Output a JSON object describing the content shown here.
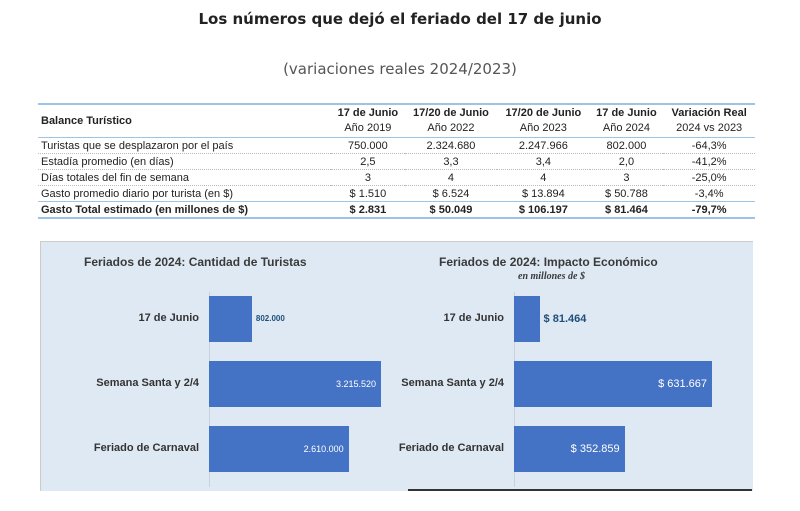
{
  "title": "Los números que dejó el feriado del 17 de junio",
  "subtitle": "(variaciones reales 2024/2023)",
  "table": {
    "header": {
      "label": "Balance Turístico",
      "cols": [
        [
          "17 de Junio",
          "Año 2019"
        ],
        [
          "17/20 de Junio",
          "Año 2022"
        ],
        [
          "17/20 de Junio",
          "Año 2023"
        ],
        [
          "17 de Junio",
          "Año 2024"
        ],
        [
          "Variación Real",
          "2024 vs 2023"
        ]
      ]
    },
    "rows": [
      [
        "Turistas que se desplazaron por el país",
        "750.000",
        "2.324.680",
        "2.247.966",
        "802.000",
        "-64,3%"
      ],
      [
        "Estadía promedio (en días)",
        "2,5",
        "3,3",
        "3,4",
        "2,0",
        "-41,2%"
      ],
      [
        "Días totales del fin de semana",
        "3",
        "4",
        "4",
        "3",
        "-25,0%"
      ],
      [
        "Gasto promedio diario por turista (en $)",
        "$ 1.510",
        "$ 6.524",
        "$ 13.894",
        "$ 50.788",
        "-3,4%"
      ]
    ],
    "total": [
      "Gasto Total estimado (en millones de $)",
      "$ 2.831",
      "$ 50.049",
      "$ 106.197",
      "$ 81.464",
      "-79,7%"
    ]
  },
  "chart_data": [
    {
      "type": "bar",
      "orientation": "horizontal",
      "title": "Feriados de 2024: Cantidad de Turistas",
      "subtitle": "",
      "categories": [
        "17 de Junio",
        "Semana Santa y 2/4",
        "Feriado de Carnaval"
      ],
      "values": [
        802000,
        3215520,
        2610000
      ],
      "labels": [
        "802.000",
        "3.215.520",
        "2.610.000"
      ],
      "xlim": [
        0,
        3215520
      ],
      "color": "#4472c4"
    },
    {
      "type": "bar",
      "orientation": "horizontal",
      "title": "Feriados de 2024: Impacto Económico",
      "subtitle": "en millones de $",
      "categories": [
        "17 de Junio",
        "Semana Santa y 2/4",
        "Feriado de Carnaval"
      ],
      "values": [
        81464,
        631667,
        352859
      ],
      "labels": [
        "$ 81.464",
        "$ 631.667",
        "$ 352.859"
      ],
      "xlim": [
        0,
        631667
      ],
      "color": "#4472c4"
    }
  ]
}
